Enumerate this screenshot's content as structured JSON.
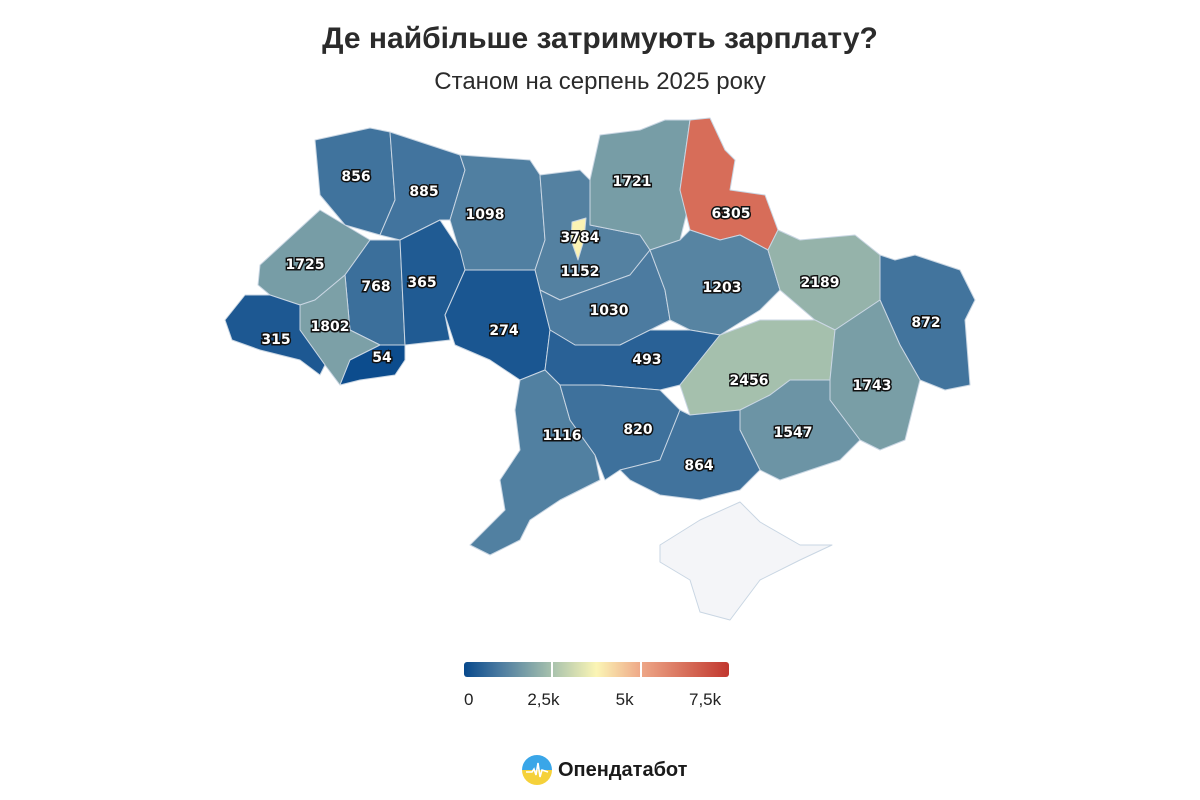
{
  "header": {
    "title": "Де найбільше затримують зарплату?",
    "subtitle": "Станом на серпень 2025 року"
  },
  "chart_data": {
    "type": "choropleth",
    "title": "Де найбільше затримують зарплату?",
    "subtitle": "Станом на серпень 2025 року",
    "values": [
      856,
      885,
      1098,
      1152,
      3784,
      1721,
      6305,
      1725,
      768,
      365,
      274,
      1802,
      315,
      54,
      1030,
      1203,
      2189,
      872,
      493,
      2456,
      1743,
      1547,
      1116,
      820,
      864
    ],
    "no_data_color": "#f4f5f8",
    "color_scale": {
      "min": 0,
      "max": 7500,
      "stops": [
        [
          0,
          "#08498c"
        ],
        [
          1000,
          "#4a7aa0"
        ],
        [
          2500,
          "#a8c2ad"
        ],
        [
          3750,
          "#fbf5b5"
        ],
        [
          5000,
          "#eea888"
        ],
        [
          7500,
          "#c1372e"
        ]
      ]
    },
    "legend": {
      "ticks": [
        "0",
        "2,5k",
        "5k",
        "7,5k"
      ],
      "placement": "bottom-center"
    }
  },
  "brand": {
    "name": "Опендатабот"
  }
}
